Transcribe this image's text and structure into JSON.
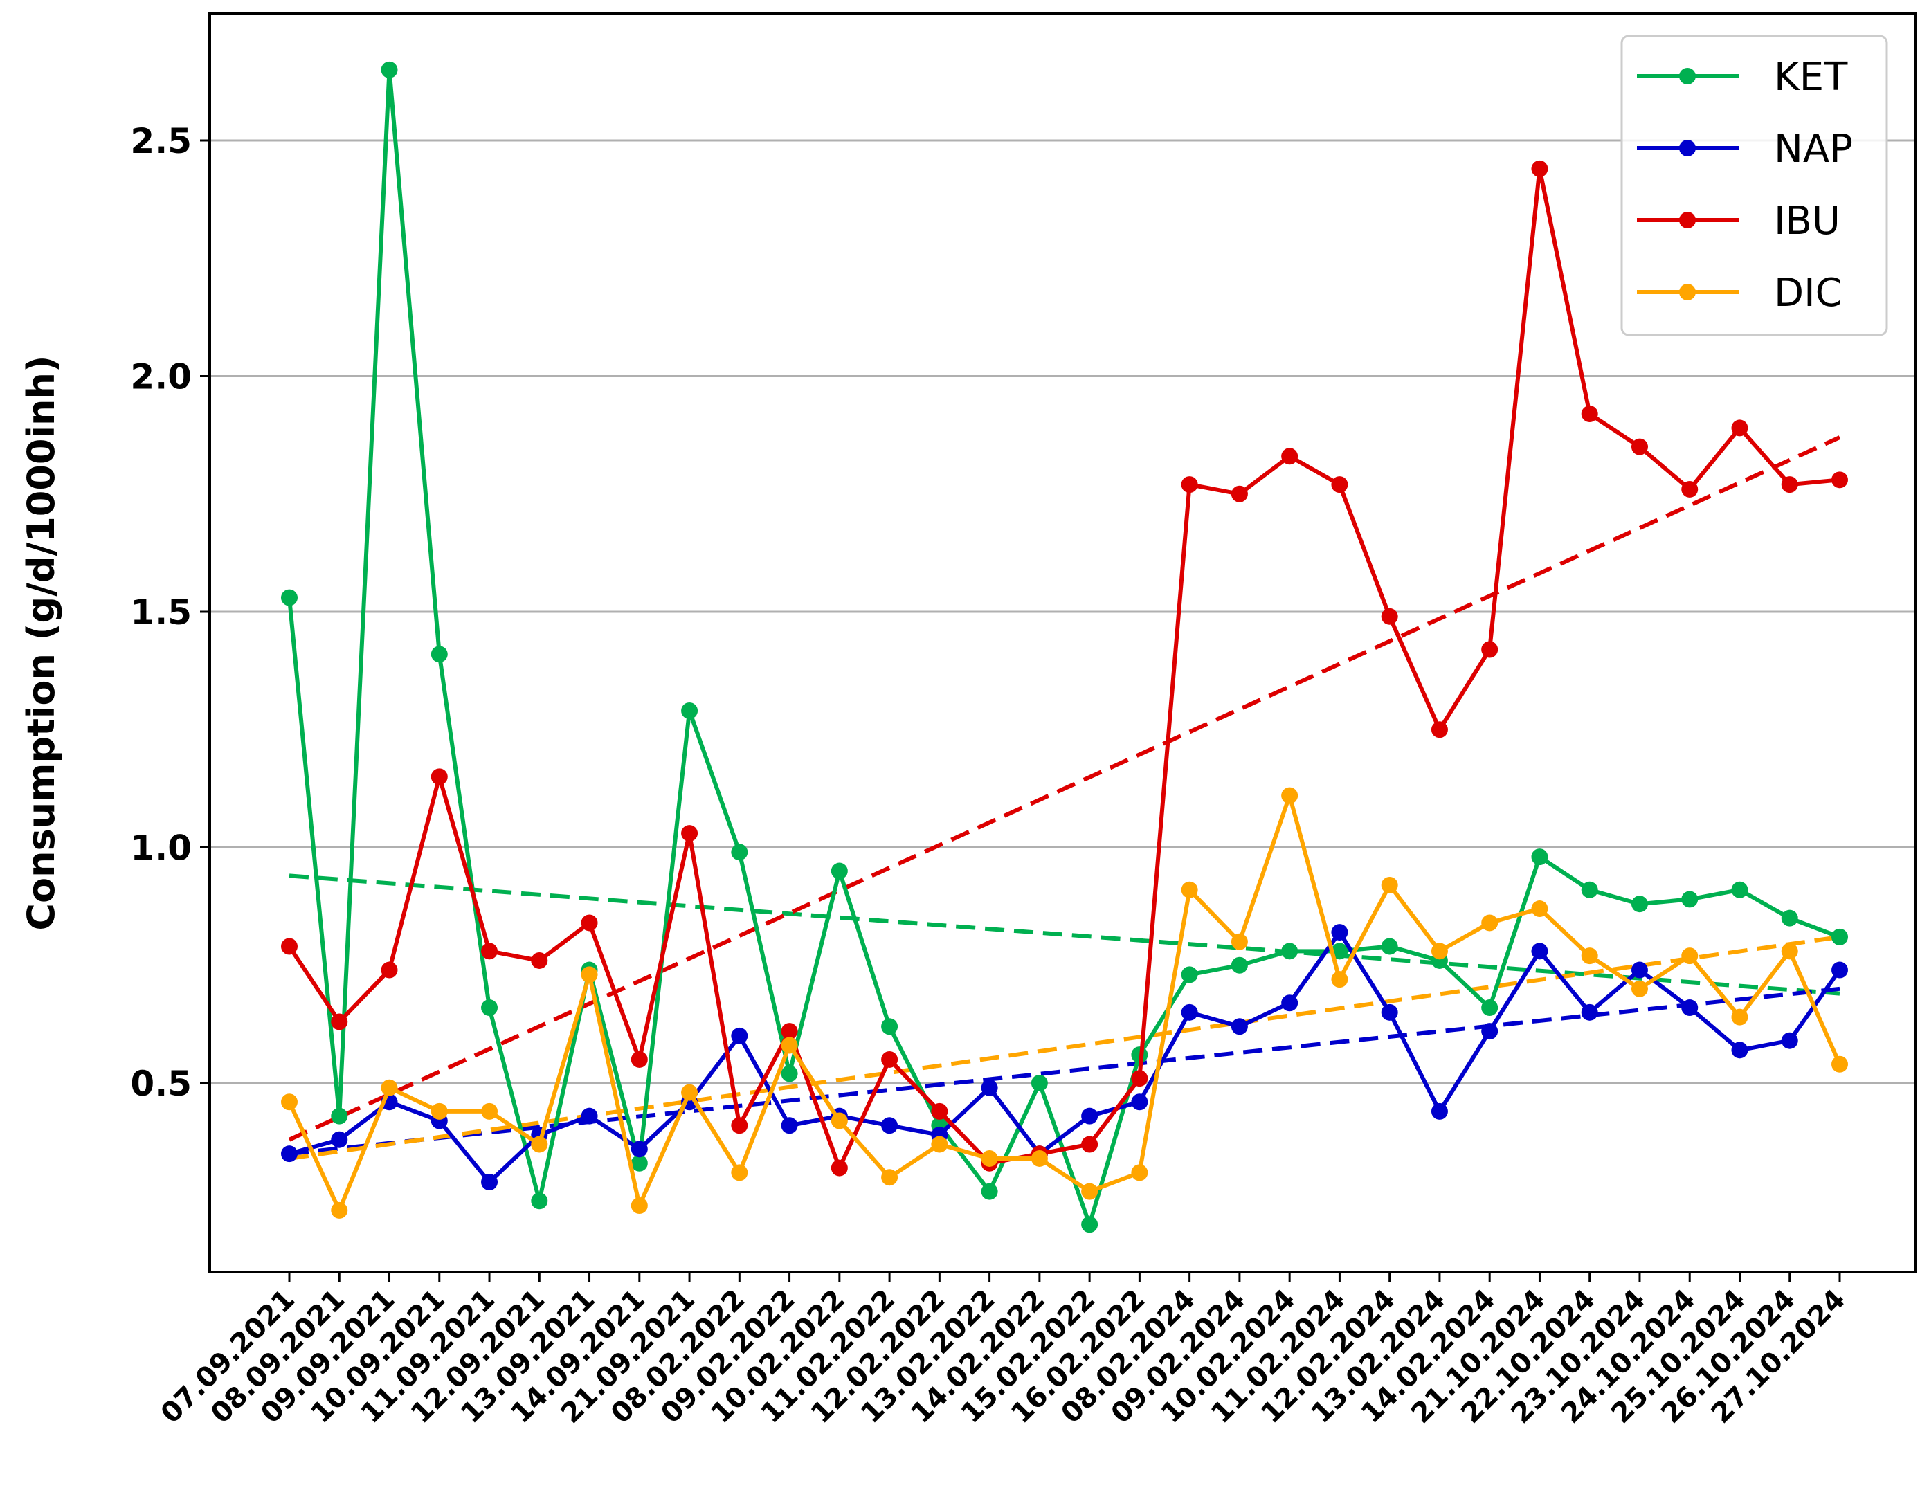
{
  "chart_data": {
    "type": "line",
    "title": "",
    "xlabel": "",
    "ylabel": "Consumption (g/d/1000inh)",
    "ylim": [
      0.14,
      2.82
    ],
    "yticks": [
      "0.5",
      "1.0",
      "1.5",
      "2.0",
      "2.5"
    ],
    "grid": "horizontal",
    "legend_position": "top-right",
    "categories": [
      "07.09.2021",
      "08.09.2021",
      "09.09.2021",
      "10.09.2021",
      "11.09.2021",
      "12.09.2021",
      "13.09.2021",
      "14.09.2021",
      "21.09.2021",
      "08.02.2022",
      "09.02.2022",
      "10.02.2022",
      "11.02.2022",
      "12.02.2022",
      "13.02.2022",
      "14.02.2022",
      "15.02.2022",
      "16.02.2022",
      "08.02.2024",
      "09.02.2024",
      "10.02.2024",
      "11.02.2024",
      "12.02.2024",
      "13.02.2024",
      "14.02.2024",
      "21.10.2024",
      "22.10.2024",
      "23.10.2024",
      "24.10.2024",
      "25.10.2024",
      "26.10.2024",
      "27.10.2024"
    ],
    "series": [
      {
        "name": "KET",
        "color": "#00b050",
        "values": [
          1.53,
          0.43,
          2.65,
          1.41,
          0.66,
          0.25,
          0.74,
          0.33,
          1.29,
          0.99,
          0.52,
          0.95,
          0.62,
          0.41,
          0.27,
          0.5,
          0.2,
          0.56,
          0.73,
          0.75,
          0.78,
          0.78,
          0.79,
          0.76,
          0.66,
          0.98,
          0.91,
          0.88,
          0.89,
          0.91,
          0.85,
          0.81
        ],
        "trend": [
          0.94,
          0.69
        ]
      },
      {
        "name": "NAP",
        "color": "#0000cc",
        "values": [
          0.35,
          0.38,
          0.46,
          0.42,
          0.29,
          0.39,
          0.43,
          0.36,
          0.46,
          0.6,
          0.41,
          0.43,
          0.41,
          0.39,
          0.49,
          0.35,
          0.43,
          0.46,
          0.65,
          0.62,
          0.67,
          0.82,
          0.65,
          0.44,
          0.61,
          0.78,
          0.65,
          0.74,
          0.66,
          0.57,
          0.59,
          0.74
        ],
        "trend": [
          0.35,
          0.7
        ]
      },
      {
        "name": "IBU",
        "color": "#dd0000",
        "values": [
          0.79,
          0.63,
          0.74,
          1.15,
          0.78,
          0.76,
          0.84,
          0.55,
          1.03,
          0.41,
          0.61,
          0.32,
          0.55,
          0.44,
          0.33,
          0.35,
          0.37,
          0.51,
          1.77,
          1.75,
          1.83,
          1.77,
          1.49,
          1.25,
          1.42,
          2.44,
          1.92,
          1.85,
          1.76,
          1.89,
          1.77,
          1.78
        ],
        "trend": [
          0.38,
          1.87
        ]
      },
      {
        "name": "DIC",
        "color": "#ffa500",
        "values": [
          0.46,
          0.23,
          0.49,
          0.44,
          0.44,
          0.37,
          0.73,
          0.24,
          0.48,
          0.31,
          0.58,
          0.42,
          0.3,
          0.37,
          0.34,
          0.34,
          0.27,
          0.31,
          0.91,
          0.8,
          1.11,
          0.72,
          0.92,
          0.78,
          0.84,
          0.87,
          0.77,
          0.7,
          0.77,
          0.64,
          0.78,
          0.54
        ],
        "trend": [
          0.34,
          0.81
        ]
      }
    ]
  }
}
